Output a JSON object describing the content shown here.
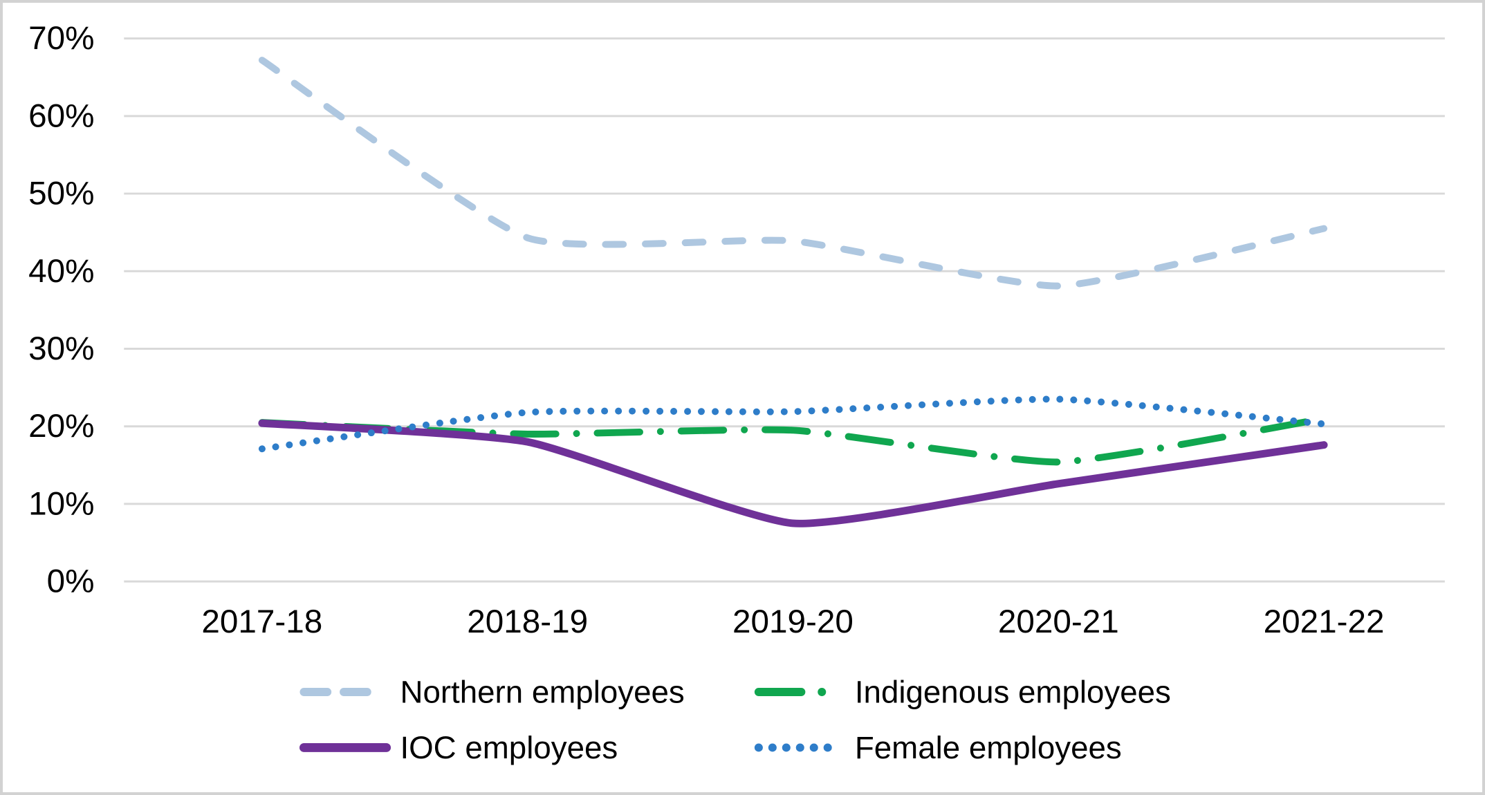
{
  "chart_data": {
    "type": "line",
    "title": "",
    "xlabel": "",
    "ylabel": "",
    "categories": [
      "2017-18",
      "2018-19",
      "2019-20",
      "2020-21",
      "2021-22"
    ],
    "series": [
      {
        "name": "Northern employees",
        "values": [
          67.2,
          44.3,
          43.9,
          38.1,
          45.5
        ],
        "color": "#AEC7E0",
        "line_style": "dashed"
      },
      {
        "name": "Indigenous employees",
        "values": [
          20.5,
          19.0,
          19.5,
          15.4,
          21.0
        ],
        "color": "#10A64F",
        "line_style": "dash-dot"
      },
      {
        "name": "IOC employees",
        "values": [
          20.4,
          18.0,
          7.5,
          12.6,
          17.6
        ],
        "color": "#6F3198",
        "line_style": "solid"
      },
      {
        "name": "Female employees",
        "values": [
          17.1,
          21.8,
          21.9,
          23.5,
          20.3
        ],
        "color": "#2E7DC9",
        "line_style": "dotted"
      }
    ],
    "ylim": [
      0,
      70
    ],
    "y_ticks": {
      "values": [
        0,
        10,
        20,
        30,
        40,
        50,
        60,
        70
      ],
      "labels": [
        "0%",
        "10%",
        "20%",
        "30%",
        "40%",
        "50%",
        "60%",
        "70%"
      ]
    },
    "grid": "horizontal",
    "legend_position": "bottom",
    "legend_rows": [
      [
        "Northern employees",
        "Indigenous employees"
      ],
      [
        "IOC employees",
        "Female employees"
      ]
    ],
    "smoothed_lines": true
  },
  "colors": {
    "gridline": "#D9D9D9",
    "text": "#000000",
    "border": "#D2D2D2",
    "background": "#FFFFFF"
  }
}
